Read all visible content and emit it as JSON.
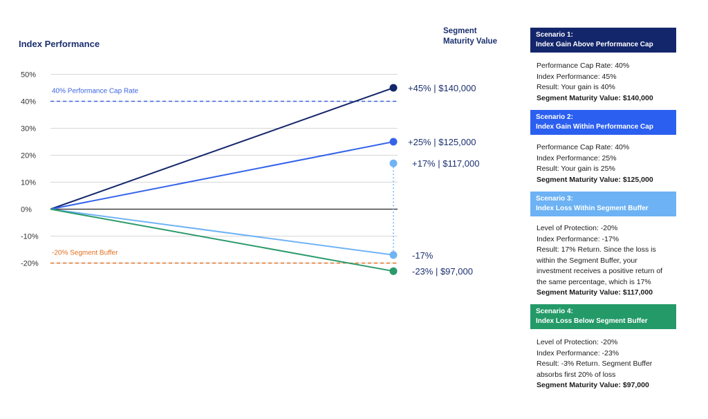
{
  "header": {
    "left_title": "Index Performance",
    "right_title_line1": "Segment",
    "right_title_line2": "Maturity Value"
  },
  "chart_data": {
    "type": "line",
    "ylabel": "",
    "xlabel": "",
    "ylim": [
      -25,
      55
    ],
    "y_ticks": [
      {
        "value": 50,
        "label": "50%"
      },
      {
        "value": 40,
        "label": "40%"
      },
      {
        "value": 30,
        "label": "30%"
      },
      {
        "value": 20,
        "label": "20%"
      },
      {
        "value": 10,
        "label": "10%"
      },
      {
        "value": 0,
        "label": "0%"
      },
      {
        "value": -10,
        "label": "-10%"
      },
      {
        "value": -20,
        "label": "-20%"
      }
    ],
    "reference_lines": [
      {
        "value": 40,
        "label": "40% Performance Cap Rate",
        "color": "#3b63e0"
      },
      {
        "value": -20,
        "label": "-20% Segment Buffer",
        "color": "#e07020"
      }
    ],
    "series": [
      {
        "start": 0,
        "end": 45,
        "color": "#14266b",
        "end_label": "+45%  |  $140,000"
      },
      {
        "start": 0,
        "end": 25,
        "color": "#3563e9",
        "end_label": "+25%  |  $125,000"
      },
      {
        "start": 0,
        "end": -17,
        "color": "#6fb3f5",
        "end_label": "-17%"
      },
      {
        "start": 0,
        "end": -23,
        "color": "#2a9a6a",
        "end_label": "-23%  |  $97,000"
      }
    ],
    "buffered_return": {
      "value": 17,
      "color": "#6fb3f5",
      "label": "+17%  |  $117,000"
    }
  },
  "scenarios": [
    {
      "color": "#14266b",
      "title1": "Scenario 1:",
      "title2": "Index Gain Above Performance Cap",
      "lines": [
        "Performance Cap Rate: 40%",
        "Index Performance: 45%",
        "Result: Your gain is 40%"
      ],
      "bold": "Segment Maturity Value: $140,000"
    },
    {
      "color": "#2b5ff0",
      "title1": "Scenario 2:",
      "title2": "Index Gain Within Performance Cap",
      "lines": [
        "Performance Cap Rate: 40%",
        "Index Performance: 25%",
        "Result: Your gain is 25%"
      ],
      "bold": "Segment Maturity Value: $125,000"
    },
    {
      "color": "#6cb2f4",
      "title1": "Scenario 3:",
      "title2": "Index Loss Within Segment Buffer",
      "lines": [
        "Level of Protection: -20%",
        "Index Performance: -17%",
        "Result: 17% Return. Since the loss is",
        "within the Segment Buffer, your",
        "investment receives a positive return of",
        "the same percentage, which is 17%"
      ],
      "bold": "Segment Maturity Value: $117,000"
    },
    {
      "color": "#239a68",
      "title1": "Scenario 4:",
      "title2": "Index Loss Below Segment Buffer",
      "lines": [
        "Level of Protection: -20%",
        "Index Performance: -23%",
        "Result: -3% Return. Segment Buffer",
        "absorbs first 20% of loss"
      ],
      "bold": "Segment Maturity Value: $97,000"
    }
  ]
}
